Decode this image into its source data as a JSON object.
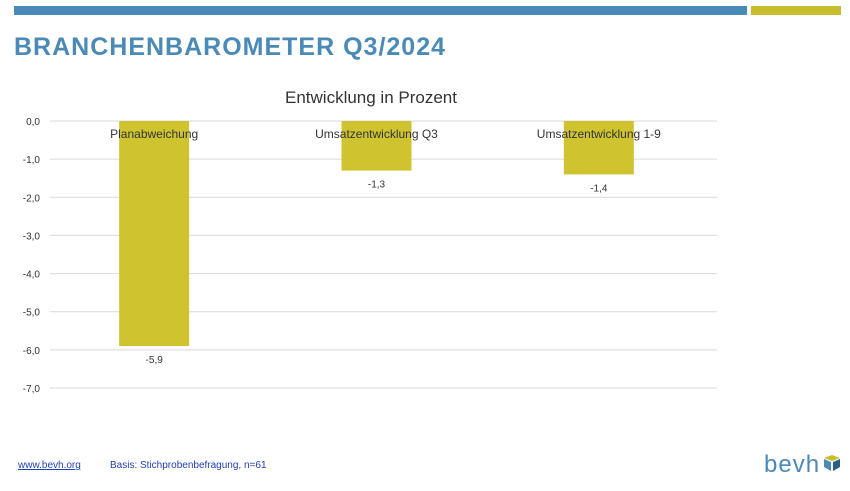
{
  "slide": {
    "title": "BRANCHENBAROMETER Q3/2024"
  },
  "footer": {
    "link_text": "www.bevh.org",
    "note": "Basis: Stichprobenbefragung, n=61"
  },
  "logo": {
    "text": "bevh",
    "mark_icon": "cube-icon"
  },
  "colors": {
    "accent_blue": "#4a8ab7",
    "accent_olive": "#c8bd2c",
    "bar": "#cfc330",
    "footer_text": "#1f3fbf"
  },
  "chart_data": {
    "type": "bar",
    "title": "Entwicklung in Prozent",
    "categories": [
      "Planabweichung",
      "Umsatzentwicklung Q3",
      "Umsatzentwicklung 1-9"
    ],
    "values": [
      -5.9,
      -1.3,
      -1.4
    ],
    "data_labels": [
      "-5,9",
      "-1,3",
      "-1,4"
    ],
    "y_ticks": [
      0,
      -1,
      -2,
      -3,
      -4,
      -5,
      -6,
      -7
    ],
    "y_tick_labels": [
      "0,0",
      "-1,0",
      "-2,0",
      "-3,0",
      "-4,0",
      "-5,0",
      "-6,0",
      "-7,0"
    ],
    "ylim": [
      -7,
      0
    ],
    "grid": true,
    "legend": "none",
    "xlabel": "",
    "ylabel": ""
  }
}
